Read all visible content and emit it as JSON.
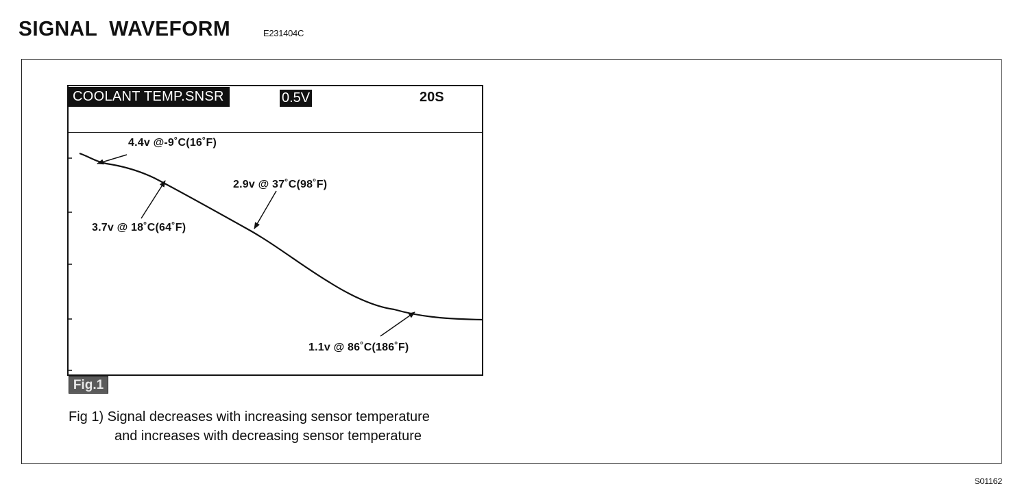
{
  "header": {
    "title": "SIGNAL  WAVEFORM",
    "code": "E231404C"
  },
  "scope": {
    "channel_label": "COOLANT TEMP.SNSR",
    "scale_label": "0.5V",
    "time_label": "20S",
    "annotations": {
      "a1": "4.4v @-9˚C(16˚F)",
      "a2": "2.9v @ 37˚C(98˚F)",
      "a3": "3.7v @ 18˚C(64˚F)",
      "a4": "1.1v @ 86˚C(186˚F)"
    }
  },
  "figure": {
    "badge": "Fig.1",
    "caption_line1": "Fig 1) Signal decreases with increasing sensor temperature",
    "caption_line2": "and increases with decreasing sensor temperature"
  },
  "footer": {
    "ref": "S01162"
  },
  "colors": {
    "ink": "#111111",
    "panel_border": "#222222",
    "badge_bg": "#5a5a5a"
  }
}
